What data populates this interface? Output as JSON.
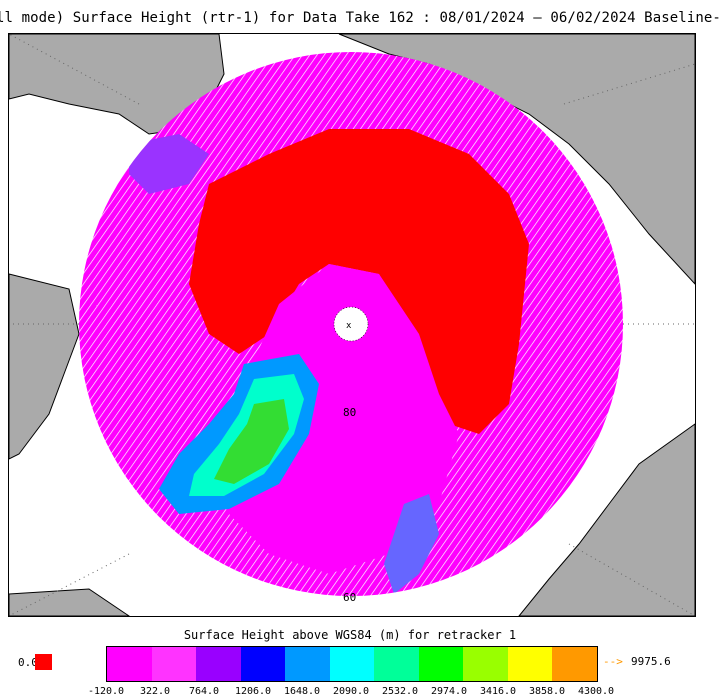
{
  "header": {
    "title": "ll mode) Surface Height (rtr-1) for Data Take 162 : 08/01/2024 — 06/02/2024 Baseline-"
  },
  "map": {
    "latitude_labels": [
      "80",
      "60"
    ],
    "colors": {
      "ocean_red": "#ff0000",
      "icecap_magenta": "#ff00ff",
      "land_gray": "#aaaaaa",
      "green": "#33dd33",
      "cyan": "#00ffff",
      "blue": "#0000ff",
      "violet": "#9a33ff"
    }
  },
  "legend": {
    "title": "Surface Height above WGS84 (m) for retracker 1",
    "low_value": "0.0",
    "low_color": "#ff0000",
    "max_arrow": "-->",
    "max_value": "9975.6",
    "max_color": "#ff9900",
    "swatches": [
      "#ff00ff",
      "#ff33ff",
      "#9900ff",
      "#0000ff",
      "#0099ff",
      "#00ffff",
      "#00ff99",
      "#00ff00",
      "#99ff00",
      "#ffff00",
      "#ff9900"
    ],
    "ticks": [
      "-120.0",
      "322.0",
      "764.0",
      "1206.0",
      "1648.0",
      "2090.0",
      "2532.0",
      "2974.0",
      "3416.0",
      "3858.0",
      "4300.0"
    ]
  }
}
